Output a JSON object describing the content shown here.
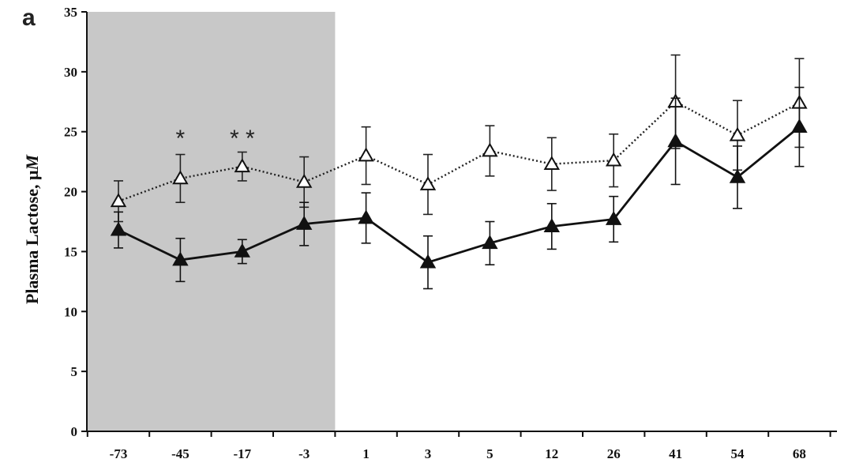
{
  "panel_label": "a",
  "chart_data": {
    "type": "line",
    "title": "",
    "xlabel": "",
    "ylabel": "Plasma Lactose, μM",
    "ylabel_parts": {
      "main": "Plasma Lactose, μ",
      "unit_italic": "M"
    },
    "categories": [
      "-73",
      "-45",
      "-17",
      "-3",
      "1",
      "3",
      "5",
      "12",
      "26",
      "41",
      "54",
      "68"
    ],
    "ylim": [
      0,
      35
    ],
    "yticks": [
      0,
      5,
      10,
      15,
      20,
      25,
      30,
      35
    ],
    "grid": false,
    "legend": "none",
    "shaded_region": {
      "from_category": "-73",
      "to_category": "-3",
      "color": "#c8c8c8"
    },
    "series": [
      {
        "marker": "open-triangle",
        "line_style": "dotted",
        "color": "#222222",
        "values": [
          19.2,
          21.1,
          22.1,
          20.8,
          23.0,
          20.6,
          23.4,
          22.3,
          22.6,
          27.5,
          24.7,
          27.4
        ],
        "errors": [
          1.7,
          2.0,
          1.2,
          2.1,
          2.4,
          2.5,
          2.1,
          2.2,
          2.2,
          3.9,
          2.9,
          3.7
        ]
      },
      {
        "marker": "filled-triangle",
        "line_style": "solid",
        "color": "#111111",
        "values": [
          16.8,
          14.3,
          15.0,
          17.3,
          17.8,
          14.1,
          15.7,
          17.1,
          17.7,
          24.2,
          21.2,
          25.4
        ],
        "errors": [
          1.5,
          1.8,
          1.0,
          1.8,
          2.1,
          2.2,
          1.8,
          1.9,
          1.9,
          3.6,
          2.6,
          3.3
        ]
      }
    ],
    "annotations": [
      {
        "text": "*",
        "category": "-45",
        "y": 24.6
      },
      {
        "text": "* *",
        "category": "-17",
        "y": 24.6
      }
    ]
  }
}
